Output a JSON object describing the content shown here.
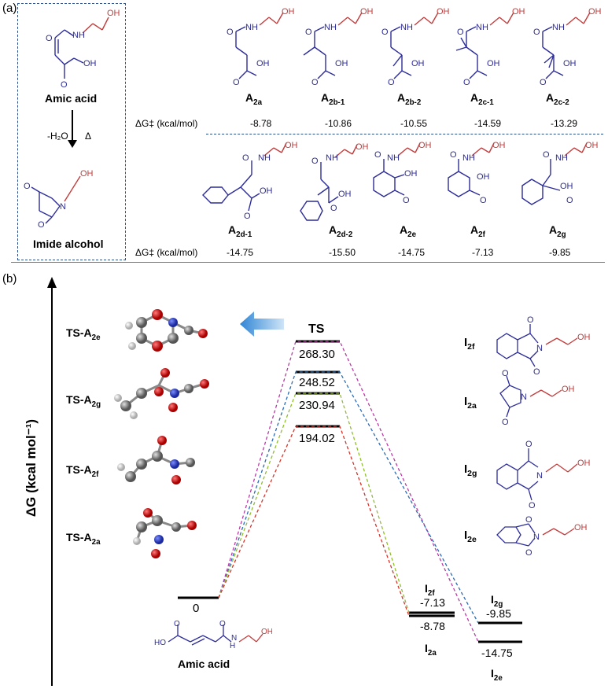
{
  "panel_a": {
    "label": "(a)",
    "left_box": {
      "top_label": "Amic acid",
      "arrow_left": "-H₂O",
      "arrow_right": "Δ",
      "bottom_label": "Imide alcohol"
    },
    "dg_label": "ΔG‡ (kcal/mol)",
    "row1": [
      {
        "name": "A",
        "sub": "2a",
        "dg": "-8.78"
      },
      {
        "name": "A",
        "sub": "2b-1",
        "dg": "-10.86"
      },
      {
        "name": "A",
        "sub": "2b-2",
        "dg": "-10.55"
      },
      {
        "name": "A",
        "sub": "2c-1",
        "dg": "-14.59"
      },
      {
        "name": "A",
        "sub": "2c-2",
        "dg": "-13.29"
      }
    ],
    "row2": [
      {
        "name": "A",
        "sub": "2d-1",
        "dg": "-14.75"
      },
      {
        "name": "A",
        "sub": "2d-2",
        "dg": "-15.50"
      },
      {
        "name": "A",
        "sub": "2e",
        "dg": "-14.75"
      },
      {
        "name": "A",
        "sub": "2f",
        "dg": "-7.13"
      },
      {
        "name": "A",
        "sub": "2g",
        "dg": "-9.85"
      }
    ]
  },
  "panel_b": {
    "label": "(b)",
    "y_axis_label": "ΔG (kcal mol⁻¹)",
    "ts_models": [
      {
        "name": "TS-A",
        "sub": "2e"
      },
      {
        "name": "TS-A",
        "sub": "2g"
      },
      {
        "name": "TS-A",
        "sub": "2f"
      },
      {
        "name": "TS-A",
        "sub": "2a"
      }
    ],
    "ts_label": "TS",
    "ts_values": [
      "268.30",
      "248.52",
      "230.94",
      "194.02"
    ],
    "start_value": "0",
    "start_label": "Amic acid",
    "product_labels": {
      "i2f": {
        "name": "I",
        "sub": "2f",
        "value": "-7.13"
      },
      "i2a": {
        "name": "I",
        "sub": "2a",
        "value": "-8.78"
      },
      "i2g": {
        "name": "I",
        "sub": "2g",
        "value": "-9.85"
      },
      "i2e": {
        "name": "I",
        "sub": "2e",
        "value": "-14.75"
      }
    },
    "right_structures": [
      {
        "name": "I",
        "sub": "2f"
      },
      {
        "name": "I",
        "sub": "2a"
      },
      {
        "name": "I",
        "sub": "2g"
      },
      {
        "name": "I",
        "sub": "2e"
      }
    ],
    "colors": {
      "magenta": "#b83aa5",
      "blue": "#2b6cb5",
      "green": "#8fbf2a",
      "red": "#d6332a"
    }
  }
}
